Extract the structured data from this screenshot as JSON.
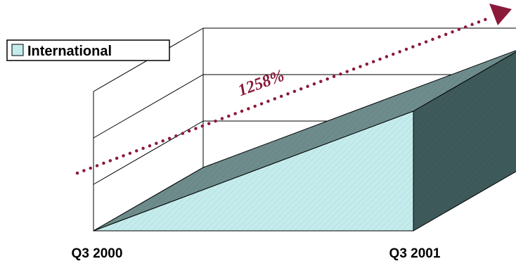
{
  "chart_data": {
    "type": "area",
    "style": "3d",
    "categories": [
      "Q3 2000",
      "Q3 2001"
    ],
    "series": [
      {
        "name": "International",
        "values": [
          0,
          100
        ]
      }
    ],
    "legend": {
      "position": "top-left",
      "entries": [
        "International"
      ]
    },
    "annotation": {
      "text": "1258%",
      "arrow": "dotted trend arrow, lower-left to upper-right"
    },
    "grid": true,
    "colors": {
      "front": "#c4ecec",
      "top": "#6e8c8c",
      "side": "#3e5a5a",
      "annotation": "#8b1a3a"
    }
  }
}
